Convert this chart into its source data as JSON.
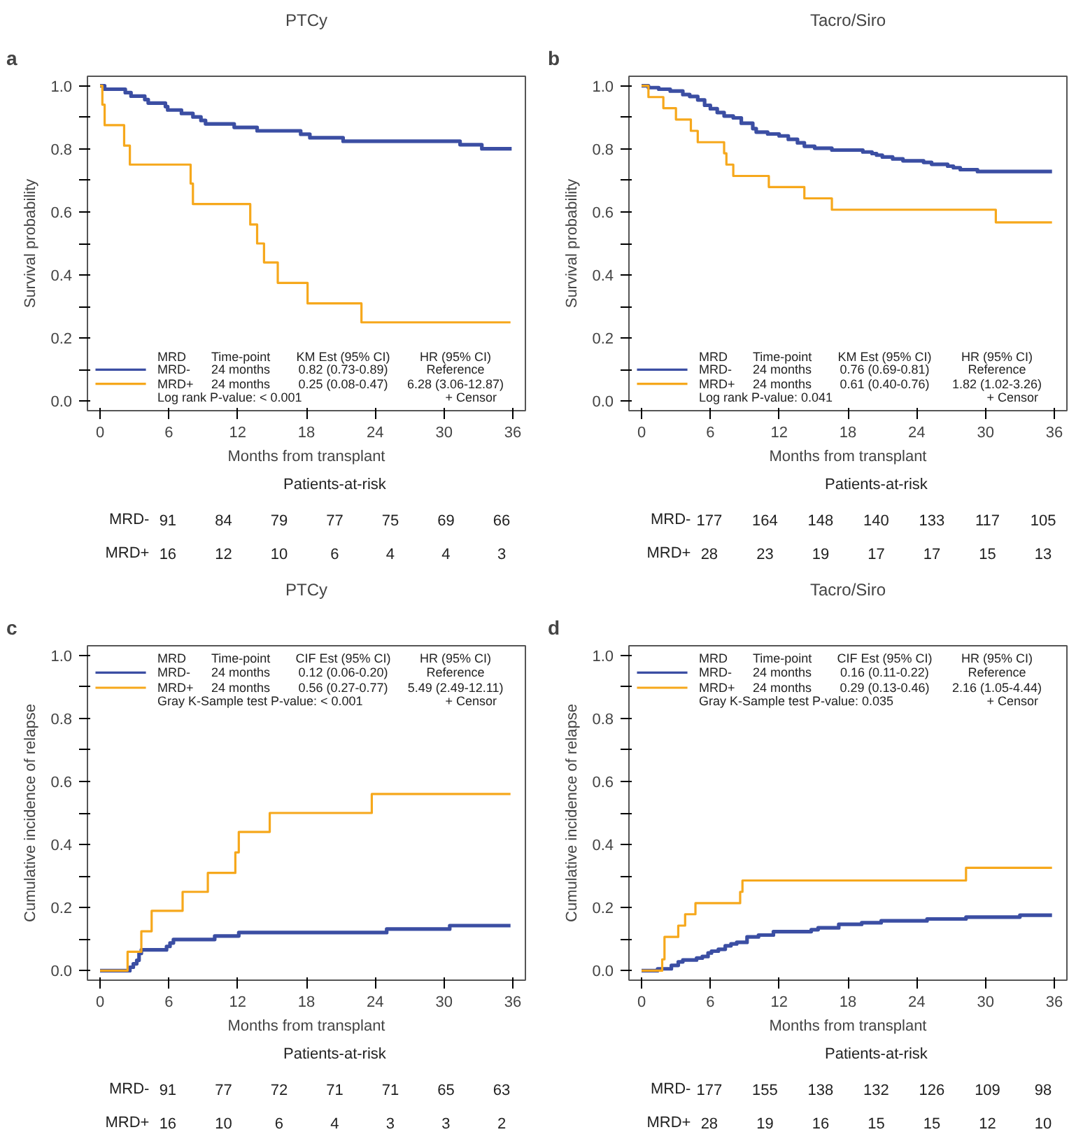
{
  "chart_data": [
    {
      "type": "step",
      "title": "PTCy",
      "xlabel": "Months from transplant",
      "ylabel": "Survival probability",
      "legend_title": "MRD",
      "legend": "bottom",
      "xlim": [
        -1.1,
        37.1
      ],
      "ylim": [
        -0.03,
        1.03
      ],
      "xticks": [
        0,
        6,
        12,
        18,
        24,
        30,
        36
      ],
      "yticks": [
        {
          "value": 0,
          "label": "0.0"
        },
        {
          "value": 0.1,
          "label": null
        },
        0.2,
        {
          "value": 0.3,
          "label": null
        },
        0.4,
        {
          "value": 0.5,
          "label": null
        },
        0.6,
        {
          "value": 0.7,
          "label": null
        },
        0.8,
        {
          "value": 0.9,
          "label": null
        },
        {
          "value": 1,
          "label": "1.0"
        }
      ],
      "series": [
        {
          "name": "MRD-",
          "color": "#3b4ea3",
          "x": [
            0,
            0.4,
            2.2,
            2.7,
            3.9,
            4.2,
            5.7,
            5.9,
            7.1,
            8.1,
            8.8,
            9.2,
            11.7,
            13.7,
            17.5,
            18.3,
            21.2,
            31.4,
            33.3,
            35.9
          ],
          "values": [
            1.0,
            0.989,
            0.978,
            0.967,
            0.956,
            0.945,
            0.934,
            0.923,
            0.912,
            0.901,
            0.89,
            0.879,
            0.868,
            0.857,
            0.846,
            0.835,
            0.824,
            0.813,
            0.8,
            0.8
          ]
        },
        {
          "name": "MRD+",
          "color": "#f6a81c",
          "x": [
            0,
            0.2,
            0.4,
            2.1,
            2.6,
            7.9,
            8.1,
            13.1,
            13.7,
            14.3,
            15.5,
            18.1,
            22.8,
            35.8
          ],
          "values": [
            1.0,
            0.94,
            0.875,
            0.81,
            0.75,
            0.69,
            0.625,
            0.56,
            0.5,
            0.44,
            0.375,
            0.31,
            0.25,
            0.25
          ]
        }
      ],
      "annotations": [
        "a",
        "Time-point",
        "KM Est (95% CI)",
        "HR (95% CI)",
        "24 months",
        "0.82 (0.73-0.89)",
        "Reference",
        "24 months",
        "0.25 (0.08-0.47)",
        "6.28 (3.06-12.87)",
        "Log rank P-value: < 0.001",
        "+ Censor",
        "Patients-at-risk",
        "91",
        "84",
        "79",
        "77",
        "75",
        "69",
        "66",
        "16",
        "12",
        "10",
        "6",
        "4",
        "4",
        "3"
      ]
    },
    {
      "type": "step",
      "title": "Tacro/Siro",
      "xlabel": "Months from transplant",
      "ylabel": "Survival probability",
      "legend_title": "MRD",
      "legend": "bottom",
      "xlim": [
        -1.1,
        37.1
      ],
      "ylim": [
        -0.03,
        1.03
      ],
      "xticks": [
        0,
        6,
        12,
        18,
        24,
        30,
        36
      ],
      "yticks": [
        {
          "value": 0,
          "label": "0.0"
        },
        {
          "value": 0.1,
          "label": null
        },
        0.2,
        {
          "value": 0.3,
          "label": null
        },
        0.4,
        {
          "value": 0.5,
          "label": null
        },
        0.6,
        {
          "value": 0.7,
          "label": null
        },
        0.8,
        {
          "value": 0.9,
          "label": null
        },
        {
          "value": 1,
          "label": "1.0"
        }
      ],
      "series": [
        {
          "name": "MRD-",
          "color": "#3b4ea3",
          "x": [
            0,
            0.6,
            1.5,
            2.5,
            3.6,
            4.2,
            4.9,
            5.5,
            6.0,
            6.6,
            7.2,
            8.0,
            8.7,
            9.7,
            10.0,
            11.0,
            12.0,
            12.8,
            13.6,
            14.2,
            15.1,
            16.6,
            19.3,
            20.1,
            20.5,
            21.0,
            21.9,
            22.8,
            24.6,
            25.3,
            26.7,
            27.2,
            27.8,
            29.3,
            35.8
          ],
          "values": [
            1.0,
            0.994,
            0.989,
            0.983,
            0.972,
            0.966,
            0.955,
            0.938,
            0.927,
            0.915,
            0.904,
            0.898,
            0.881,
            0.864,
            0.853,
            0.847,
            0.841,
            0.83,
            0.819,
            0.808,
            0.802,
            0.796,
            0.79,
            0.785,
            0.78,
            0.774,
            0.768,
            0.762,
            0.757,
            0.751,
            0.745,
            0.74,
            0.734,
            0.728,
            0.728
          ]
        },
        {
          "name": "MRD+",
          "color": "#f6a81c",
          "x": [
            0,
            0.6,
            1.9,
            3.0,
            4.3,
            4.9,
            7.2,
            7.4,
            8.0,
            11.1,
            14.2,
            16.6,
            30.9,
            35.8
          ],
          "values": [
            1.0,
            0.964,
            0.929,
            0.893,
            0.857,
            0.821,
            0.786,
            0.75,
            0.714,
            0.679,
            0.643,
            0.607,
            0.567,
            0.567
          ]
        }
      ],
      "annotations": [
        "b",
        "Time-point",
        "KM Est (95% CI)",
        "HR (95% CI)",
        "24 months",
        "0.76 (0.69-0.81)",
        "Reference",
        "24 months",
        "0.61 (0.40-0.76)",
        "1.82 (1.02-3.26)",
        "Log rank P-value: 0.041",
        "+ Censor",
        "Patients-at-risk",
        "177",
        "164",
        "148",
        "140",
        "133",
        "117",
        "105",
        "28",
        "23",
        "19",
        "17",
        "17",
        "15",
        "13"
      ]
    },
    {
      "type": "step",
      "title": "PTCy",
      "xlabel": "Months from transplant",
      "ylabel": "Cumulative incidence of relapse",
      "legend_title": "MRD",
      "legend": "top",
      "xlim": [
        -1.1,
        37.1
      ],
      "ylim": [
        -0.03,
        1.03
      ],
      "xticks": [
        0,
        6,
        12,
        18,
        24,
        30,
        36
      ],
      "yticks": [
        {
          "value": 0,
          "label": "0.0"
        },
        {
          "value": 0.1,
          "label": null
        },
        0.2,
        {
          "value": 0.3,
          "label": null
        },
        0.4,
        {
          "value": 0.5,
          "label": null
        },
        0.6,
        {
          "value": 0.7,
          "label": null
        },
        0.8,
        {
          "value": 0.9,
          "label": null
        },
        {
          "value": 1,
          "label": "1.0"
        }
      ],
      "series": [
        {
          "name": "MRD-",
          "color": "#3b4ea3",
          "x": [
            0,
            2.6,
            2.9,
            3.2,
            3.4,
            3.6,
            5.8,
            6.1,
            6.4,
            10.0,
            12.1,
            25.0,
            30.5,
            35.8
          ],
          "values": [
            0,
            0.011,
            0.022,
            0.033,
            0.055,
            0.066,
            0.077,
            0.088,
            0.099,
            0.11,
            0.121,
            0.132,
            0.143,
            0.143
          ]
        },
        {
          "name": "MRD+",
          "color": "#f6a81c",
          "x": [
            0,
            2.4,
            3.6,
            4.5,
            7.2,
            9.4,
            11.8,
            12.1,
            14.8,
            23.7,
            35.8
          ],
          "values": [
            0,
            0.06,
            0.125,
            0.19,
            0.25,
            0.31,
            0.375,
            0.44,
            0.5,
            0.56,
            0.56
          ]
        }
      ],
      "annotations": [
        "c",
        "Time-point",
        "CIF Est (95% CI)",
        "HR (95% CI)",
        "24 months",
        "0.12 (0.06-0.20)",
        "Reference",
        "24 months",
        "0.56 (0.27-0.77)",
        "5.49 (2.49-12.11)",
        "Gray K-Sample test P-value: < 0.001",
        "+ Censor",
        "Patients-at-risk",
        "91",
        "77",
        "72",
        "71",
        "71",
        "65",
        "63",
        "16",
        "10",
        "6",
        "4",
        "3",
        "3",
        "2"
      ]
    },
    {
      "type": "step",
      "title": "Tacro/Siro",
      "xlabel": "Months from transplant",
      "ylabel": "Cumulative incidence of relapse",
      "legend_title": "MRD",
      "legend": "top",
      "xlim": [
        -1.1,
        37.1
      ],
      "ylim": [
        -0.03,
        1.03
      ],
      "xticks": [
        0,
        6,
        12,
        18,
        24,
        30,
        36
      ],
      "yticks": [
        {
          "value": 0,
          "label": "0.0"
        },
        {
          "value": 0.1,
          "label": null
        },
        0.2,
        {
          "value": 0.3,
          "label": null
        },
        0.4,
        {
          "value": 0.5,
          "label": null
        },
        0.6,
        {
          "value": 0.7,
          "label": null
        },
        0.8,
        {
          "value": 0.9,
          "label": null
        },
        {
          "value": 1,
          "label": "1.0"
        }
      ],
      "series": [
        {
          "name": "MRD-",
          "color": "#3b4ea3",
          "x": [
            0,
            1.4,
            2.6,
            3.2,
            3.6,
            4.8,
            5.3,
            5.8,
            6.1,
            6.7,
            7.3,
            7.8,
            8.3,
            9.2,
            10.2,
            11.5,
            14.8,
            15.4,
            17.2,
            19.2,
            20.9,
            24.9,
            28.3,
            33.0,
            35.8
          ],
          "values": [
            0,
            0.006,
            0.017,
            0.028,
            0.034,
            0.04,
            0.045,
            0.056,
            0.062,
            0.068,
            0.079,
            0.085,
            0.09,
            0.107,
            0.113,
            0.124,
            0.13,
            0.136,
            0.147,
            0.152,
            0.158,
            0.164,
            0.17,
            0.176,
            0.176
          ]
        },
        {
          "name": "MRD+",
          "color": "#f6a81c",
          "x": [
            0,
            1.8,
            2.0,
            3.2,
            3.8,
            4.7,
            8.6,
            8.8,
            28.3,
            35.8
          ],
          "values": [
            0,
            0.036,
            0.107,
            0.143,
            0.179,
            0.214,
            0.25,
            0.286,
            0.326,
            0.326
          ]
        }
      ],
      "annotations": [
        "d",
        "Time-point",
        "CIF Est (95% CI)",
        "HR (95% CI)",
        "24 months",
        "0.16 (0.11-0.22)",
        "Reference",
        "24 months",
        "0.29 (0.13-0.46)",
        "2.16 (1.05-4.44)",
        "Gray K-Sample test P-value: 0.035",
        "+ Censor",
        "Patients-at-risk",
        "177",
        "155",
        "138",
        "132",
        "126",
        "109",
        "98",
        "28",
        "19",
        "16",
        "15",
        "15",
        "12",
        "10"
      ]
    }
  ]
}
